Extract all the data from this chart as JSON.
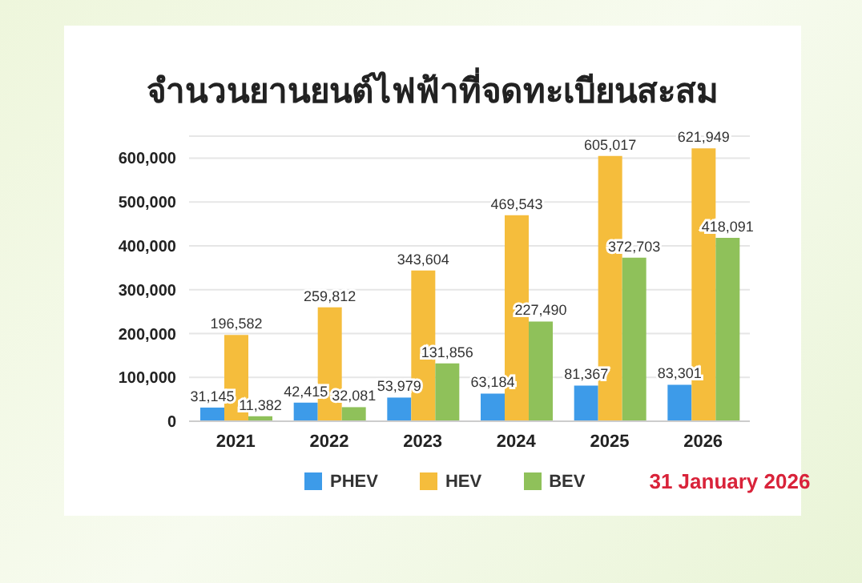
{
  "chart_data": {
    "type": "bar",
    "title": "จำนวนยานยนต์ไฟฟ้าที่จดทะเบียนสะสม",
    "categories": [
      "2021",
      "2022",
      "2023",
      "2024",
      "2025",
      "2026"
    ],
    "series": [
      {
        "name": "PHEV",
        "color": "#3d9be9",
        "values": [
          31145,
          42415,
          53979,
          63184,
          81367,
          83301
        ],
        "value_labels": [
          "31,145",
          "42,415",
          "53,979",
          "63,184",
          "81,367",
          "83,301"
        ]
      },
      {
        "name": "HEV",
        "color": "#f5bd3c",
        "values": [
          196582,
          259812,
          343604,
          469543,
          605017,
          621949
        ],
        "value_labels": [
          "196,582",
          "259,812",
          "343,604",
          "469,543",
          "605,017",
          "621,949"
        ]
      },
      {
        "name": "BEV",
        "color": "#8fc15a",
        "values": [
          11382,
          32081,
          131856,
          227490,
          372703,
          418091
        ],
        "value_labels": [
          "11,382",
          "32,081",
          "131,856",
          "227,490",
          "372,703",
          "418,091"
        ]
      }
    ],
    "ylim": [
      0,
      650000
    ],
    "yticks": [
      0,
      {
        "value": 100000,
        "label": "100,000"
      },
      {
        "value": 200000,
        "label": "200,000"
      },
      {
        "value": 300000,
        "label": "300,000"
      },
      {
        "value": 400000,
        "label": "400,000"
      },
      {
        "value": 500000,
        "label": "500,000"
      },
      {
        "value": 600000,
        "label": "600,000"
      }
    ],
    "grid": "y",
    "legend": "bottom",
    "annotations": [
      "31 January 2026"
    ]
  }
}
